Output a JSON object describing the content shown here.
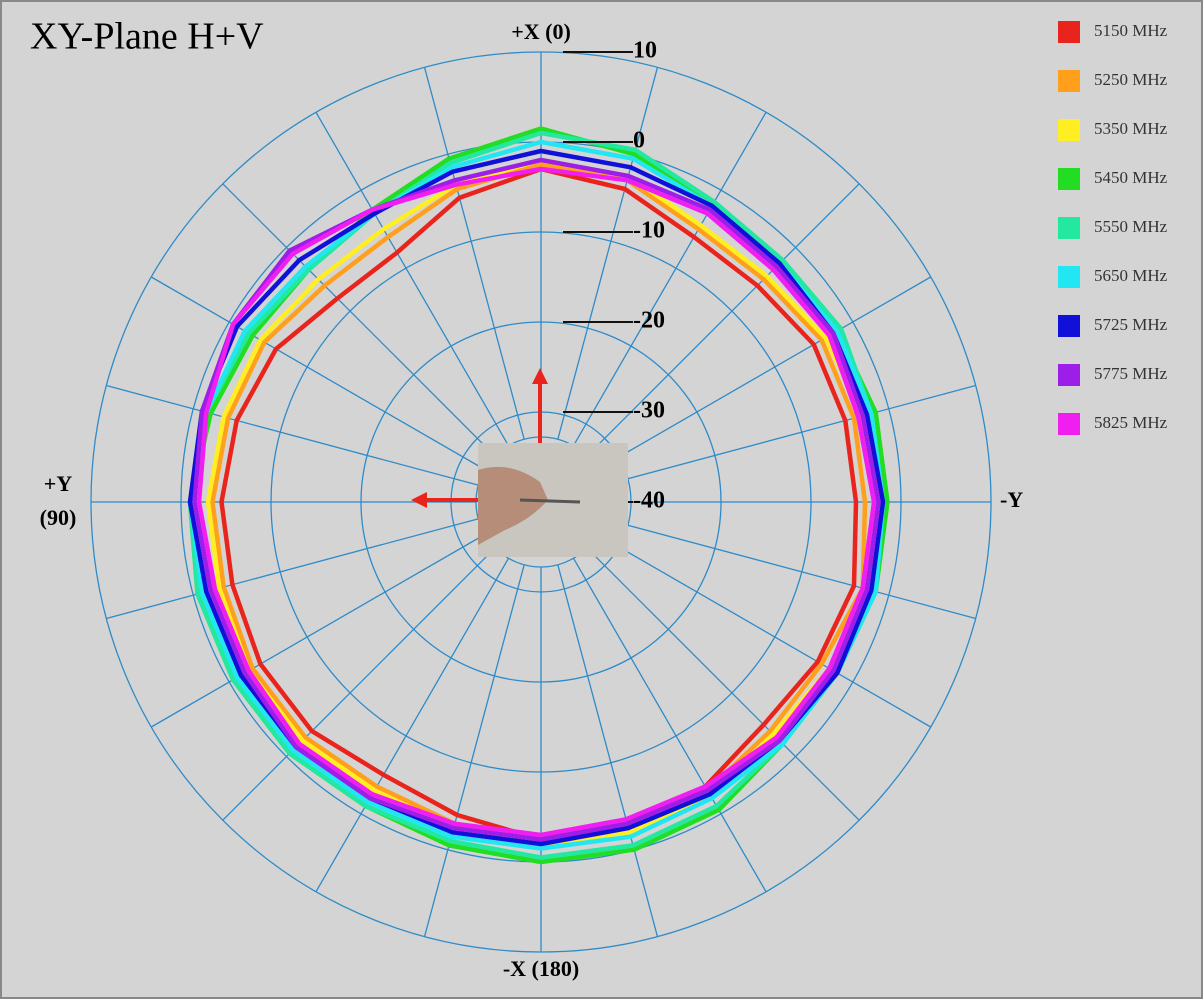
{
  "chart_data": {
    "type": "polar",
    "title": "XY-Plane  H+V",
    "direction": "counterclockwise",
    "zero_at": "top",
    "rlim": [
      -40,
      10
    ],
    "rticks": [
      -40,
      -30,
      -20,
      -10,
      0,
      10
    ],
    "thetagrid": [
      0,
      15,
      30,
      45,
      60,
      75,
      90,
      105,
      120,
      135,
      150,
      165,
      180,
      195,
      210,
      225,
      240,
      255,
      270,
      285,
      300,
      315,
      330,
      345
    ],
    "axis_labels": {
      "top": "+X (0)",
      "left": [
        "+Y",
        "(90)"
      ],
      "bottom": "-X (180)",
      "right": "-Y"
    },
    "grid_color": "#2e8bc8",
    "theta": [
      0,
      15,
      30,
      45,
      60,
      75,
      90,
      105,
      120,
      135,
      150,
      165,
      180,
      195,
      210,
      225,
      240,
      255,
      270,
      285,
      300,
      315,
      330,
      345
    ],
    "series": [
      {
        "name": "5150 MHz",
        "color": "#e8241c",
        "values": [
          -3,
          -5,
          -8,
          -8,
          -6,
          -5,
          -4.5,
          -4.5,
          -4,
          -4,
          -5,
          -4,
          -2.5,
          -3,
          -3.5,
          -5,
          -4.5,
          -4,
          -5,
          -5,
          -5,
          -6,
          -6,
          -4
        ]
      },
      {
        "name": "5250 MHz",
        "color": "#ff9f1c",
        "values": [
          -2.5,
          -4,
          -6,
          -6,
          -4.5,
          -4,
          -3.5,
          -3.5,
          -3,
          -3,
          -3.5,
          -3,
          -2.5,
          -2.5,
          -3,
          -4,
          -4,
          -3,
          -4,
          -4,
          -4,
          -5,
          -5,
          -3
        ]
      },
      {
        "name": "5350 MHz",
        "color": "#ffee22",
        "values": [
          -2,
          -3.5,
          -5,
          -5,
          -4,
          -3.5,
          -3,
          -3,
          -2.5,
          -2.5,
          -3,
          -2.5,
          -2,
          -2,
          -2.5,
          -3.5,
          -3,
          -2.5,
          -3,
          -3,
          -3.5,
          -4.5,
          -4.5,
          -2.5
        ]
      },
      {
        "name": "5450 MHz",
        "color": "#22dd22",
        "values": [
          1.5,
          -0.5,
          -2.5,
          -3.5,
          -3,
          -2,
          -1,
          -0.5,
          -0.5,
          -0.5,
          -1,
          -0.5,
          0,
          0,
          -0.5,
          -2,
          -2,
          -1.5,
          -1.5,
          -1.5,
          -2,
          -2.5,
          -2,
          0
        ]
      },
      {
        "name": "5550 MHz",
        "color": "#22e8a0",
        "values": [
          1,
          -1,
          -3,
          -3.5,
          -2.5,
          -1.5,
          -1,
          -0.5,
          -0.5,
          -0.5,
          -1,
          -1,
          -0.5,
          -0.5,
          -1,
          -2,
          -2,
          -1.5,
          -2,
          -2,
          -1.5,
          -2,
          -1.5,
          0.5
        ]
      },
      {
        "name": "5650 MHz",
        "color": "#22e6f2",
        "values": [
          0,
          -1.5,
          -3,
          -3,
          -2,
          -1.5,
          -1,
          -1,
          -1,
          -1,
          -1.5,
          -1.5,
          -1.5,
          -1.5,
          -2,
          -2,
          -2,
          -1.5,
          -2,
          -2,
          -2,
          -2.5,
          -2,
          -0.5
        ]
      },
      {
        "name": "5725 MHz",
        "color": "#1010d8",
        "values": [
          -1,
          -2,
          -3,
          -2,
          -1,
          -1,
          -1,
          -1.5,
          -1.5,
          -1.5,
          -2,
          -2,
          -2,
          -2.5,
          -2.5,
          -2.5,
          -2,
          -2,
          -2,
          -2.5,
          -2.5,
          -2.5,
          -2,
          -1.5
        ]
      },
      {
        "name": "5775 MHz",
        "color": "#9c1ee8",
        "values": [
          -2,
          -3,
          -2.5,
          -0.5,
          -0.5,
          -1,
          -1.5,
          -2,
          -2,
          -1.5,
          -2,
          -2.5,
          -2.5,
          -3,
          -3,
          -2.5,
          -2.5,
          -2.5,
          -2.5,
          -3,
          -2.5,
          -3,
          -2.5,
          -2.5
        ]
      },
      {
        "name": "5825 MHz",
        "color": "#f01ef0",
        "values": [
          -3,
          -3.5,
          -2.5,
          -1,
          -0.5,
          -1.5,
          -2,
          -2.5,
          -2.5,
          -2,
          -2.5,
          -3,
          -3,
          -3.5,
          -3.5,
          -3,
          -3,
          -3,
          -3,
          -3.5,
          -3,
          -3.5,
          -3,
          -3
        ]
      }
    ]
  }
}
